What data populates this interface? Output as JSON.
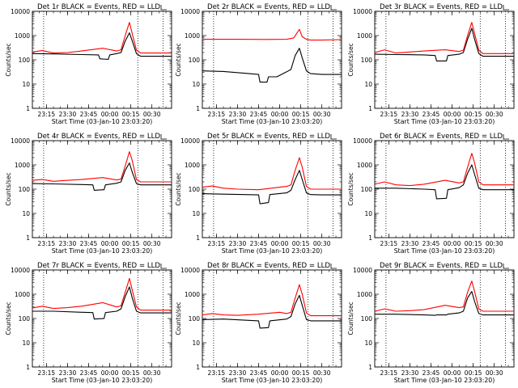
{
  "figure": {
    "panels_grid": "3x3",
    "colors": {
      "events": "#000000",
      "lld": "#ff0000",
      "frame": "#000000",
      "background": "#ffffff"
    }
  },
  "chart_data": [
    {
      "type": "line",
      "title": "Det 1r BLACK = Events, RED = LLD",
      "xlabel": "Start Time (03-Jan-10 23:03:20)",
      "ylabel": "Counts/sec",
      "y_scale": "log",
      "ylim": [
        1,
        10000
      ],
      "ytick_labels": [
        "1",
        "10",
        "100",
        "1000",
        "10000"
      ],
      "xlim": [
        "23:05",
        "00:44"
      ],
      "xtick_labels": [
        "23:15",
        "23:30",
        "23:45",
        "00:00",
        "00:15",
        "00:30"
      ],
      "vertical_dotted_lines": [
        "23:13",
        "00:20",
        "00:38"
      ],
      "corner_marker": true,
      "series": [
        {
          "name": "Events",
          "color": "#000000",
          "x": [
            "23:05",
            "23:20",
            "23:40",
            "23:52",
            "23:53",
            "23:59",
            "00:00",
            "00:05",
            "00:08",
            "00:11",
            "00:14",
            "00:16",
            "00:19",
            "00:22",
            "00:30",
            "00:44"
          ],
          "y": [
            180,
            175,
            165,
            160,
            110,
            105,
            160,
            180,
            200,
            600,
            1300,
            600,
            180,
            140,
            140,
            140
          ]
        },
        {
          "name": "LLD",
          "color": "#ff0000",
          "x": [
            "23:05",
            "23:12",
            "23:20",
            "23:30",
            "23:40",
            "23:55",
            "00:05",
            "00:08",
            "00:11",
            "00:14",
            "00:16",
            "00:19",
            "00:22",
            "00:30",
            "00:44"
          ],
          "y": [
            210,
            240,
            190,
            200,
            230,
            300,
            230,
            260,
            1000,
            3500,
            1200,
            250,
            190,
            190,
            190
          ]
        }
      ]
    },
    {
      "type": "line",
      "title": "Det 2r BLACK = Events, RED = LLD",
      "xlabel": "Start Time (03-Jan-10 23:03:20)",
      "ylabel": "Counts/sec",
      "y_scale": "log",
      "ylim": [
        1,
        10000
      ],
      "ytick_labels": [
        "1",
        "10",
        "100",
        "1000",
        "10000"
      ],
      "xlim": [
        "23:05",
        "00:44"
      ],
      "xtick_labels": [
        "23:15",
        "23:30",
        "23:45",
        "00:00",
        "00:15",
        "00:30"
      ],
      "vertical_dotted_lines": [
        "23:13",
        "00:20",
        "00:38"
      ],
      "corner_marker": true,
      "series": [
        {
          "name": "Events",
          "color": "#000000",
          "x": [
            "23:05",
            "23:20",
            "23:35",
            "23:45",
            "23:46",
            "23:51",
            "23:52",
            "23:58",
            "00:05",
            "00:08",
            "00:11",
            "00:14",
            "00:16",
            "00:19",
            "00:22",
            "00:30",
            "00:44"
          ],
          "y": [
            35,
            33,
            28,
            25,
            12,
            12,
            20,
            20,
            32,
            40,
            150,
            300,
            120,
            35,
            27,
            25,
            25
          ]
        },
        {
          "name": "LLD",
          "color": "#ff0000",
          "x": [
            "23:05",
            "23:30",
            "23:50",
            "00:05",
            "00:10",
            "00:14",
            "00:16",
            "00:19",
            "00:22",
            "00:30",
            "00:44"
          ],
          "y": [
            700,
            700,
            690,
            700,
            800,
            1800,
            900,
            700,
            650,
            650,
            680
          ]
        }
      ]
    },
    {
      "type": "line",
      "title": "Det 3r BLACK = Events, RED = LLD",
      "xlabel": "Start Time (03-Jan-10 23:03:20)",
      "ylabel": "Counts/sec",
      "y_scale": "log",
      "ylim": [
        1,
        10000
      ],
      "ytick_labels": [
        "1",
        "10",
        "100",
        "1000",
        "10000"
      ],
      "xlim": [
        "23:05",
        "00:44"
      ],
      "xtick_labels": [
        "23:15",
        "23:30",
        "23:45",
        "00:00",
        "00:15",
        "00:30"
      ],
      "vertical_dotted_lines": [
        "23:13",
        "00:20",
        "00:38"
      ],
      "corner_marker": true,
      "series": [
        {
          "name": "Events",
          "color": "#000000",
          "x": [
            "23:05",
            "23:20",
            "23:40",
            "23:48",
            "23:49",
            "23:56",
            "23:57",
            "00:05",
            "00:08",
            "00:11",
            "00:14",
            "00:16",
            "00:19",
            "00:22",
            "00:30",
            "00:44"
          ],
          "y": [
            170,
            165,
            160,
            150,
            90,
            90,
            150,
            170,
            200,
            700,
            2000,
            700,
            180,
            140,
            140,
            140
          ]
        },
        {
          "name": "LLD",
          "color": "#ff0000",
          "x": [
            "23:05",
            "23:12",
            "23:20",
            "23:30",
            "23:40",
            "23:55",
            "00:05",
            "00:08",
            "00:11",
            "00:14",
            "00:16",
            "00:19",
            "00:22",
            "00:30",
            "00:44"
          ],
          "y": [
            200,
            260,
            190,
            210,
            230,
            260,
            220,
            250,
            1000,
            3500,
            1200,
            250,
            180,
            180,
            180
          ]
        }
      ]
    },
    {
      "type": "line",
      "title": "Det 4r BLACK = Events, RED = LLD",
      "xlabel": "Start Time (03-Jan-10 23:03:20)",
      "ylabel": "Counts/sec",
      "y_scale": "log",
      "ylim": [
        1,
        10000
      ],
      "ytick_labels": [
        "1",
        "10",
        "100",
        "1000",
        "10000"
      ],
      "xlim": [
        "23:05",
        "00:44"
      ],
      "xtick_labels": [
        "23:15",
        "23:30",
        "23:45",
        "00:00",
        "00:15",
        "00:30"
      ],
      "vertical_dotted_lines": [
        "23:13",
        "00:20",
        "00:38"
      ],
      "corner_marker": true,
      "series": [
        {
          "name": "Events",
          "color": "#000000",
          "x": [
            "23:05",
            "23:20",
            "23:40",
            "23:48",
            "23:49",
            "23:56",
            "23:57",
            "00:05",
            "00:08",
            "00:11",
            "00:14",
            "00:16",
            "00:19",
            "00:22",
            "00:30",
            "00:44"
          ],
          "y": [
            170,
            165,
            155,
            150,
            90,
            95,
            150,
            175,
            200,
            600,
            1200,
            500,
            170,
            150,
            150,
            150
          ]
        },
        {
          "name": "LLD",
          "color": "#ff0000",
          "x": [
            "23:05",
            "23:12",
            "23:20",
            "23:30",
            "23:40",
            "23:55",
            "00:05",
            "00:08",
            "00:11",
            "00:14",
            "00:16",
            "00:19",
            "00:22",
            "00:30",
            "00:44"
          ],
          "y": [
            230,
            250,
            210,
            230,
            250,
            300,
            240,
            260,
            900,
            3500,
            1500,
            250,
            200,
            200,
            200
          ]
        }
      ]
    },
    {
      "type": "line",
      "title": "Det 5r BLACK = Events, RED = LLD",
      "xlabel": "Start Time (03-Jan-10 23:03:20)",
      "ylabel": "Counts/sec",
      "y_scale": "log",
      "ylim": [
        1,
        10000
      ],
      "ytick_labels": [
        "1",
        "10",
        "100",
        "1000",
        "10000"
      ],
      "xlim": [
        "23:05",
        "00:44"
      ],
      "xtick_labels": [
        "23:15",
        "23:30",
        "23:45",
        "00:00",
        "00:15",
        "00:30"
      ],
      "vertical_dotted_lines": [
        "23:13",
        "00:20",
        "00:38"
      ],
      "corner_marker": true,
      "series": [
        {
          "name": "Events",
          "color": "#000000",
          "x": [
            "23:05",
            "23:20",
            "23:35",
            "23:45",
            "23:46",
            "23:52",
            "23:53",
            "00:05",
            "00:08",
            "00:11",
            "00:14",
            "00:16",
            "00:19",
            "00:22",
            "00:30",
            "00:44"
          ],
          "y": [
            65,
            62,
            60,
            58,
            25,
            28,
            60,
            70,
            90,
            250,
            600,
            250,
            70,
            60,
            58,
            58
          ]
        },
        {
          "name": "LLD",
          "color": "#ff0000",
          "x": [
            "23:05",
            "23:12",
            "23:20",
            "23:30",
            "23:45",
            "00:00",
            "00:05",
            "00:08",
            "00:11",
            "00:14",
            "00:16",
            "00:19",
            "00:22",
            "00:30",
            "00:44"
          ],
          "y": [
            120,
            135,
            110,
            100,
            95,
            120,
            130,
            150,
            600,
            2000,
            800,
            130,
            100,
            100,
            100
          ]
        }
      ]
    },
    {
      "type": "line",
      "title": "Det 6r BLACK = Events, RED = LLD",
      "xlabel": "Start Time (03-Jan-10 23:03:20)",
      "ylabel": "Counts/sec",
      "y_scale": "log",
      "ylim": [
        1,
        10000
      ],
      "ytick_labels": [
        "1",
        "10",
        "100",
        "1000",
        "10000"
      ],
      "xlim": [
        "23:05",
        "00:44"
      ],
      "xtick_labels": [
        "23:15",
        "23:30",
        "23:45",
        "00:00",
        "00:15",
        "00:30"
      ],
      "vertical_dotted_lines": [
        "23:13",
        "00:20",
        "00:38"
      ],
      "corner_marker": true,
      "series": [
        {
          "name": "Events",
          "color": "#000000",
          "x": [
            "23:05",
            "23:20",
            "23:40",
            "23:48",
            "23:49",
            "23:56",
            "23:57",
            "00:05",
            "00:08",
            "00:11",
            "00:14",
            "00:16",
            "00:19",
            "00:22",
            "00:30",
            "00:44"
          ],
          "y": [
            110,
            110,
            100,
            95,
            40,
            42,
            95,
            115,
            150,
            450,
            1000,
            400,
            110,
            95,
            95,
            95
          ]
        },
        {
          "name": "LLD",
          "color": "#ff0000",
          "x": [
            "23:05",
            "23:12",
            "23:20",
            "23:30",
            "23:40",
            "23:55",
            "00:05",
            "00:08",
            "00:11",
            "00:14",
            "00:16",
            "00:19",
            "00:22",
            "00:30",
            "00:44"
          ],
          "y": [
            160,
            200,
            150,
            140,
            160,
            230,
            180,
            200,
            800,
            3000,
            1200,
            200,
            150,
            150,
            150
          ]
        }
      ]
    },
    {
      "type": "line",
      "title": "Det 7r BLACK = Events, RED = LLD",
      "xlabel": "Start Time (03-Jan-10 23:03:20)",
      "ylabel": "Counts/sec",
      "y_scale": "log",
      "ylim": [
        1,
        10000
      ],
      "ytick_labels": [
        "1",
        "10",
        "100",
        "1000",
        "10000"
      ],
      "xlim": [
        "23:05",
        "00:44"
      ],
      "xtick_labels": [
        "23:15",
        "23:30",
        "23:45",
        "00:00",
        "00:15",
        "00:30"
      ],
      "vertical_dotted_lines": [
        "23:13",
        "00:20",
        "00:38"
      ],
      "corner_marker": true,
      "series": [
        {
          "name": "Events",
          "color": "#000000",
          "x": [
            "23:05",
            "23:20",
            "23:40",
            "23:48",
            "23:49",
            "23:56",
            "23:57",
            "00:05",
            "00:08",
            "00:11",
            "00:14",
            "00:16",
            "00:19",
            "00:22",
            "00:30",
            "00:44"
          ],
          "y": [
            200,
            200,
            180,
            175,
            95,
            100,
            175,
            200,
            250,
            800,
            2000,
            700,
            200,
            170,
            170,
            170
          ]
        },
        {
          "name": "LLD",
          "color": "#ff0000",
          "x": [
            "23:05",
            "23:12",
            "23:20",
            "23:30",
            "23:40",
            "23:55",
            "00:05",
            "00:08",
            "00:11",
            "00:14",
            "00:16",
            "00:19",
            "00:22",
            "00:30",
            "00:44"
          ],
          "y": [
            270,
            320,
            260,
            280,
            320,
            450,
            300,
            330,
            1200,
            4500,
            1500,
            300,
            220,
            220,
            220
          ]
        }
      ]
    },
    {
      "type": "line",
      "title": "Det 8r BLACK = Events, RED = LLD",
      "xlabel": "Start Time (03-Jan-10 23:03:20)",
      "ylabel": "Counts/sec",
      "y_scale": "log",
      "ylim": [
        1,
        10000
      ],
      "ytick_labels": [
        "1",
        "10",
        "100",
        "1000",
        "10000"
      ],
      "xlim": [
        "23:05",
        "00:44"
      ],
      "xtick_labels": [
        "23:15",
        "23:30",
        "23:45",
        "00:00",
        "00:15",
        "00:30"
      ],
      "vertical_dotted_lines": [
        "23:13",
        "00:20",
        "00:38"
      ],
      "corner_marker": true,
      "series": [
        {
          "name": "Events",
          "color": "#000000",
          "x": [
            "23:05",
            "23:20",
            "23:35",
            "23:45",
            "23:46",
            "23:52",
            "23:53",
            "00:05",
            "00:08",
            "00:11",
            "00:14",
            "00:16",
            "00:19",
            "00:22",
            "00:30",
            "00:44"
          ],
          "y": [
            90,
            95,
            85,
            80,
            40,
            42,
            80,
            95,
            120,
            400,
            900,
            350,
            90,
            80,
            80,
            80
          ]
        },
        {
          "name": "LLD",
          "color": "#ff0000",
          "x": [
            "23:05",
            "23:12",
            "23:20",
            "23:30",
            "23:45",
            "00:00",
            "00:05",
            "00:08",
            "00:11",
            "00:14",
            "00:16",
            "00:19",
            "00:22",
            "00:30",
            "00:44"
          ],
          "y": [
            140,
            160,
            140,
            135,
            150,
            180,
            160,
            180,
            700,
            2500,
            1000,
            170,
            130,
            130,
            130
          ]
        }
      ]
    },
    {
      "type": "line",
      "title": "Det 9r BLACK = Events, RED = LLD",
      "xlabel": "Start Time (03-Jan-10 23:03:20)",
      "ylabel": "Counts/sec",
      "y_scale": "log",
      "ylim": [
        1,
        10000
      ],
      "ytick_labels": [
        "1",
        "10",
        "100",
        "1000",
        "10000"
      ],
      "xlim": [
        "23:05",
        "00:44"
      ],
      "xtick_labels": [
        "23:15",
        "23:30",
        "23:45",
        "00:00",
        "00:15",
        "00:30"
      ],
      "vertical_dotted_lines": [
        "23:13",
        "00:20",
        "00:38"
      ],
      "corner_marker": true,
      "series": [
        {
          "name": "Events",
          "color": "#000000",
          "x": [
            "23:05",
            "23:20",
            "23:40",
            "23:48",
            "23:49",
            "23:56",
            "23:57",
            "00:05",
            "00:08",
            "00:11",
            "00:14",
            "00:16",
            "00:19",
            "00:22",
            "00:30",
            "00:44"
          ],
          "y": [
            150,
            150,
            140,
            135,
            140,
            140,
            150,
            170,
            200,
            700,
            1300,
            500,
            160,
            140,
            140,
            140
          ]
        },
        {
          "name": "LLD",
          "color": "#ff0000",
          "x": [
            "23:05",
            "23:12",
            "23:20",
            "23:30",
            "23:40",
            "23:55",
            "00:05",
            "00:08",
            "00:11",
            "00:14",
            "00:16",
            "00:19",
            "00:22",
            "00:30",
            "00:44"
          ],
          "y": [
            200,
            250,
            200,
            210,
            230,
            350,
            280,
            300,
            1200,
            3500,
            1300,
            250,
            200,
            200,
            200
          ]
        }
      ]
    }
  ]
}
